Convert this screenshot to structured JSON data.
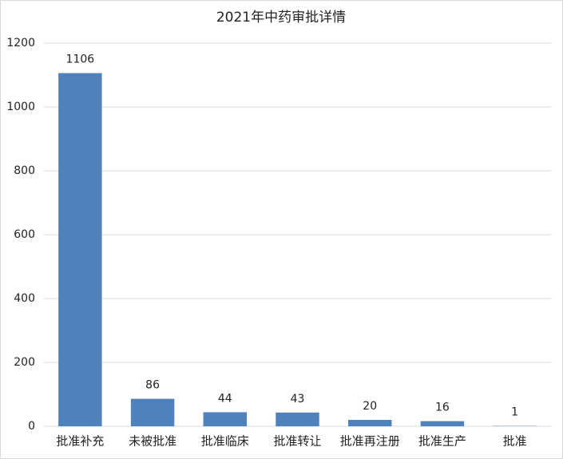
{
  "chart_data": {
    "type": "bar",
    "title": "2021年中药审批详情",
    "categories": [
      "批准补充",
      "未被批准",
      "批准临床",
      "批准转让",
      "批准再注册",
      "批准生产",
      "批准"
    ],
    "values": [
      1106,
      86,
      44,
      43,
      20,
      16,
      1
    ],
    "color": "#4f81bd",
    "ylim": [
      0,
      1200
    ],
    "yticks": [
      0,
      200,
      400,
      600,
      800,
      1000,
      1200
    ],
    "grid": true
  }
}
